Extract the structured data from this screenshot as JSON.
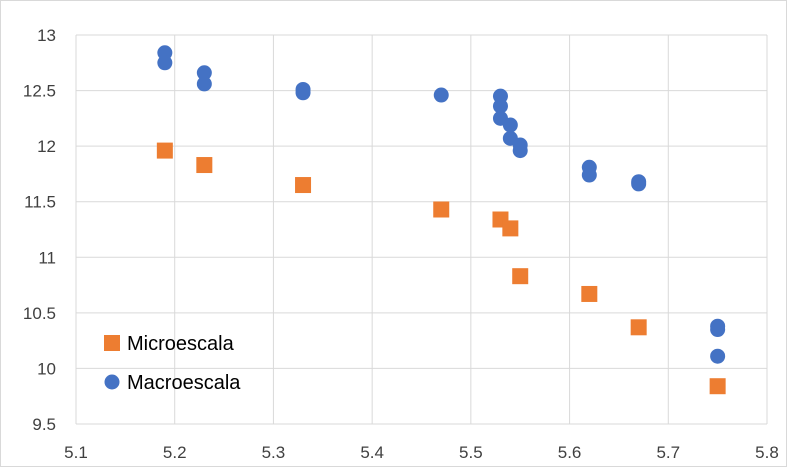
{
  "chart_data": {
    "type": "scatter",
    "title": "",
    "xlabel": "",
    "ylabel": "",
    "xlim": [
      5.1,
      5.8
    ],
    "ylim": [
      9.5,
      13
    ],
    "x_ticks": [
      "5.1",
      "5.2",
      "5.3",
      "5.4",
      "5.5",
      "5.6",
      "5.7",
      "5.8"
    ],
    "y_ticks": [
      "9.5",
      "10",
      "10.5",
      "11",
      "11.5",
      "12",
      "12.5",
      "13"
    ],
    "grid": true,
    "legend_position": "bottom-left",
    "series": [
      {
        "name": "Microescala",
        "marker": "square",
        "color": "#ED7D31",
        "points": [
          {
            "x": 5.19,
            "y": 11.96
          },
          {
            "x": 5.23,
            "y": 11.83
          },
          {
            "x": 5.33,
            "y": 11.65
          },
          {
            "x": 5.47,
            "y": 11.43
          },
          {
            "x": 5.53,
            "y": 11.34
          },
          {
            "x": 5.54,
            "y": 11.26
          },
          {
            "x": 5.55,
            "y": 10.83
          },
          {
            "x": 5.62,
            "y": 10.67
          },
          {
            "x": 5.67,
            "y": 10.37
          },
          {
            "x": 5.75,
            "y": 9.84
          }
        ]
      },
      {
        "name": "Macroescala",
        "marker": "circle",
        "color": "#4472C4",
        "points": [
          {
            "x": 5.19,
            "y": 12.84
          },
          {
            "x": 5.19,
            "y": 12.75
          },
          {
            "x": 5.23,
            "y": 12.66
          },
          {
            "x": 5.23,
            "y": 12.56
          },
          {
            "x": 5.33,
            "y": 12.51
          },
          {
            "x": 5.33,
            "y": 12.48
          },
          {
            "x": 5.47,
            "y": 12.46
          },
          {
            "x": 5.53,
            "y": 12.45
          },
          {
            "x": 5.53,
            "y": 12.36
          },
          {
            "x": 5.53,
            "y": 12.25
          },
          {
            "x": 5.54,
            "y": 12.19
          },
          {
            "x": 5.54,
            "y": 12.07
          },
          {
            "x": 5.55,
            "y": 12.01
          },
          {
            "x": 5.55,
            "y": 11.96
          },
          {
            "x": 5.62,
            "y": 11.81
          },
          {
            "x": 5.62,
            "y": 11.74
          },
          {
            "x": 5.67,
            "y": 11.68
          },
          {
            "x": 5.67,
            "y": 11.66
          },
          {
            "x": 5.75,
            "y": 10.38
          },
          {
            "x": 5.75,
            "y": 10.35
          },
          {
            "x": 5.75,
            "y": 10.11
          }
        ]
      }
    ]
  }
}
